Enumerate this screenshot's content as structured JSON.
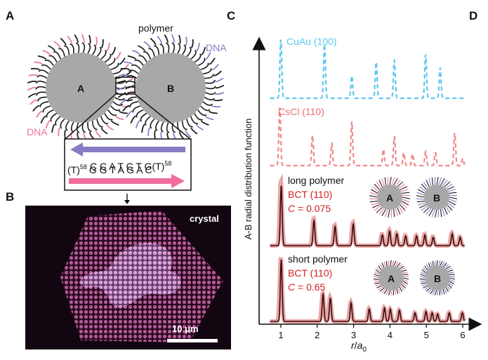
{
  "panels": {
    "a": "A",
    "b": "B",
    "c": "C",
    "d": "D"
  },
  "panel_a": {
    "polymer_label": "polymer",
    "dna_label_right": "DNA",
    "dna_label_left": "DNA",
    "particle_a": "A",
    "particle_b": "B",
    "strand_top_seq": "C C A T C T G",
    "strand_top_tail": "(T)",
    "strand_top_sup": "58",
    "strand_bottom_head": "(T)",
    "strand_bottom_sup": "58",
    "strand_bottom_seq": "G G T A G A C"
  },
  "panel_b": {
    "crystal_label": "crystal",
    "scale_label": "10 μm"
  },
  "colors": {
    "cyan": "#5cc8ee",
    "pink": "#ef8a8a",
    "red": "#d42020",
    "purple": "#8a7cc4",
    "dna_pink": "#e8789e",
    "particle_gray": "#a8a8a8"
  },
  "chart_data": {
    "type": "line",
    "ylabel": "A-B radial distribution function",
    "xlabel_main": "r",
    "xlabel_sub": "a",
    "xlabel_subscript": "0",
    "xlabel_sep": "/",
    "xlim": [
      0.5,
      6.2
    ],
    "x_ticks": [
      "1",
      "2",
      "3",
      "4",
      "5",
      "6"
    ],
    "x_tick_values": [
      1,
      2,
      3,
      4,
      5,
      6
    ],
    "series": [
      {
        "name": "CuAu (100)",
        "label": "CuAu (100)",
        "style": "dashed",
        "color": "#5cc8ee",
        "peaks": [
          {
            "x": 1.0,
            "h": 1.0
          },
          {
            "x": 2.2,
            "h": 0.92
          },
          {
            "x": 2.95,
            "h": 0.38
          },
          {
            "x": 3.62,
            "h": 0.62
          },
          {
            "x": 4.12,
            "h": 0.65
          },
          {
            "x": 4.98,
            "h": 0.74
          },
          {
            "x": 5.38,
            "h": 0.52
          }
        ]
      },
      {
        "name": "CsCl (110)",
        "label": "CsCl (110)",
        "style": "dashed",
        "color": "#ef8a8a",
        "peaks": [
          {
            "x": 0.97,
            "h": 1.0
          },
          {
            "x": 1.87,
            "h": 0.52
          },
          {
            "x": 2.4,
            "h": 0.38
          },
          {
            "x": 2.95,
            "h": 0.76
          },
          {
            "x": 3.82,
            "h": 0.28
          },
          {
            "x": 4.12,
            "h": 0.5
          },
          {
            "x": 4.38,
            "h": 0.22
          },
          {
            "x": 4.62,
            "h": 0.2
          },
          {
            "x": 4.98,
            "h": 0.24
          },
          {
            "x": 5.25,
            "h": 0.22
          },
          {
            "x": 5.78,
            "h": 0.56
          },
          {
            "x": 6.0,
            "h": 0.12
          }
        ]
      },
      {
        "name": "long polymer",
        "title": "long polymer",
        "lattice": "BCT (110)",
        "c_label": "C",
        "c_value": " = 0.075",
        "style": "solid",
        "color": "#e28a8a",
        "sim_color": "#3a0a0a",
        "peaks": [
          {
            "x": 1.0,
            "h": 1.0
          },
          {
            "x": 1.9,
            "h": 0.42
          },
          {
            "x": 2.48,
            "h": 0.32
          },
          {
            "x": 2.98,
            "h": 0.36
          },
          {
            "x": 3.78,
            "h": 0.18
          },
          {
            "x": 3.98,
            "h": 0.24
          },
          {
            "x": 4.18,
            "h": 0.2
          },
          {
            "x": 4.42,
            "h": 0.16
          },
          {
            "x": 4.72,
            "h": 0.16
          },
          {
            "x": 4.95,
            "h": 0.18
          },
          {
            "x": 5.18,
            "h": 0.14
          },
          {
            "x": 5.7,
            "h": 0.2
          },
          {
            "x": 5.92,
            "h": 0.14
          }
        ]
      },
      {
        "name": "short polymer",
        "title": "short polymer",
        "lattice": "BCT (110)",
        "c_label": "C",
        "c_value": " = 0.65",
        "style": "solid",
        "color": "#e28a8a",
        "sim_color": "#3a0a0a",
        "peaks": [
          {
            "x": 1.0,
            "h": 1.0
          },
          {
            "x": 2.15,
            "h": 0.44
          },
          {
            "x": 2.35,
            "h": 0.38
          },
          {
            "x": 2.92,
            "h": 0.3
          },
          {
            "x": 3.42,
            "h": 0.2
          },
          {
            "x": 3.84,
            "h": 0.22
          },
          {
            "x": 4.0,
            "h": 0.2
          },
          {
            "x": 4.25,
            "h": 0.18
          },
          {
            "x": 4.68,
            "h": 0.14
          },
          {
            "x": 4.98,
            "h": 0.16
          },
          {
            "x": 5.15,
            "h": 0.14
          },
          {
            "x": 5.3,
            "h": 0.12
          },
          {
            "x": 5.62,
            "h": 0.14
          },
          {
            "x": 5.98,
            "h": 0.14
          }
        ]
      }
    ],
    "inset_labels": {
      "particle_a": "A",
      "particle_b": "B"
    }
  }
}
